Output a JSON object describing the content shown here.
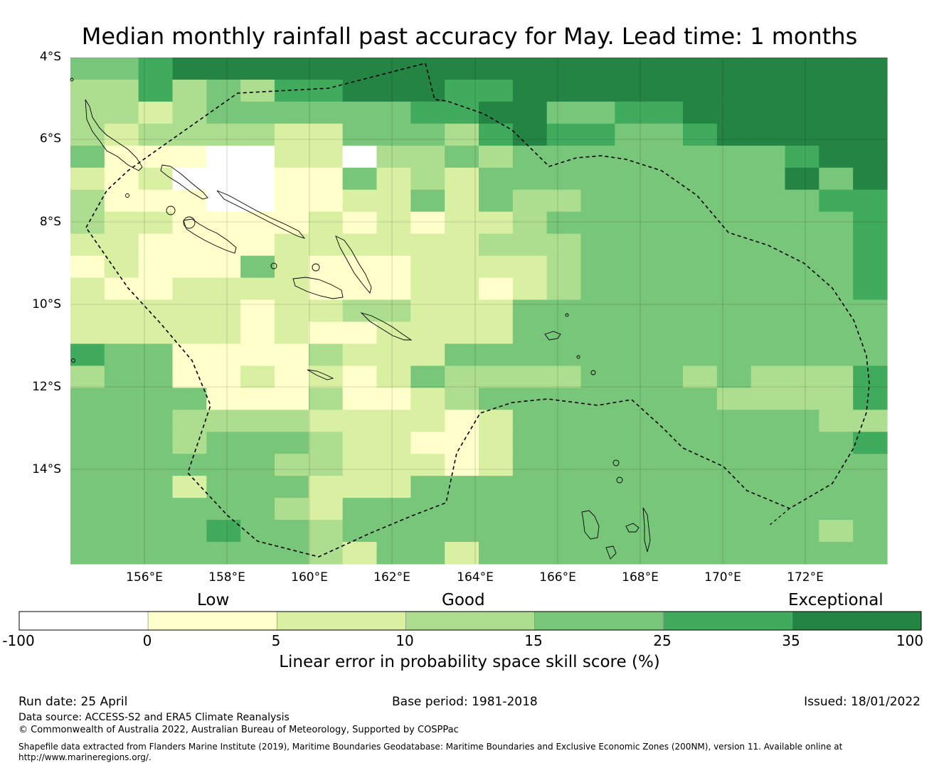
{
  "title": "Median monthly rainfall past accuracy for May. Lead time: 1 months",
  "lat_labels": [
    "4°S",
    "6°S",
    "8°S",
    "10°S",
    "12°S",
    "14°S"
  ],
  "lon_labels": [
    "156°E",
    "158°E",
    "160°E",
    "162°E",
    "164°E",
    "166°E",
    "168°E",
    "170°E",
    "172°E"
  ],
  "colorbar": {
    "categories": [
      "Low",
      "Good",
      "Exceptional"
    ],
    "ticks": [
      "-100",
      "0",
      "5",
      "10",
      "15",
      "25",
      "35",
      "100"
    ],
    "label": "Linear error in probability space skill score (%)",
    "colors": [
      "#ffffff",
      "#ffffcc",
      "#d9f0a3",
      "#addd8e",
      "#78c679",
      "#41ab5d",
      "#238443"
    ]
  },
  "footer": {
    "run_date": "Run date: 25 April",
    "base_period": "Base period: 1981-2018",
    "issued": "Issued: 18/01/2022",
    "data_source": "Data source: ACCESS-S2 and ERA5 Climate Reanalysis",
    "copyright": "© Commonwealth of Australia 2022, Australian Bureau of Meteorology, Supported by COSPPac",
    "shapefile_line1": "Shapefile data extracted from Flanders Marine Institute (2019), Maritime Boundaries Geodatabase: Maritime Boundaries and Exclusive Economic Zones (200NM), version 11. Available online at",
    "shapefile_line2": "http://www.marineregions.org/."
  },
  "grid_legend": "0=-100..0 (white), 1=0..5, 2=5..10, 3=10..15, 4=15..25, 5=25..35, 6=35..100",
  "grid": [
    "445666666666666666666666",
    "335343556665566666666666",
    "332344444455664455666666",
    "323333224443565544566666",
    "411100220334344444444566",
    "212000114232444444444646",
    "311100112242433444444455",
    "322111121212234444444445",
    "221111222222333444444445",
    "121114211122223444444445",
    "211222211122123444444445",
    "222221223322244444444444",
    "222221211222244444444444",
    "544111132224444444444444",
    "344112121243333444343335",
    "444411131123444444433335",
    "444333322221244444444433",
    "444344432211244444444445",
    "444444332221244444444444",
    "444244422244444444444444",
    "444444324444444444444444",
    "444454434444444444444434",
    "444444432442444444444444"
  ]
}
